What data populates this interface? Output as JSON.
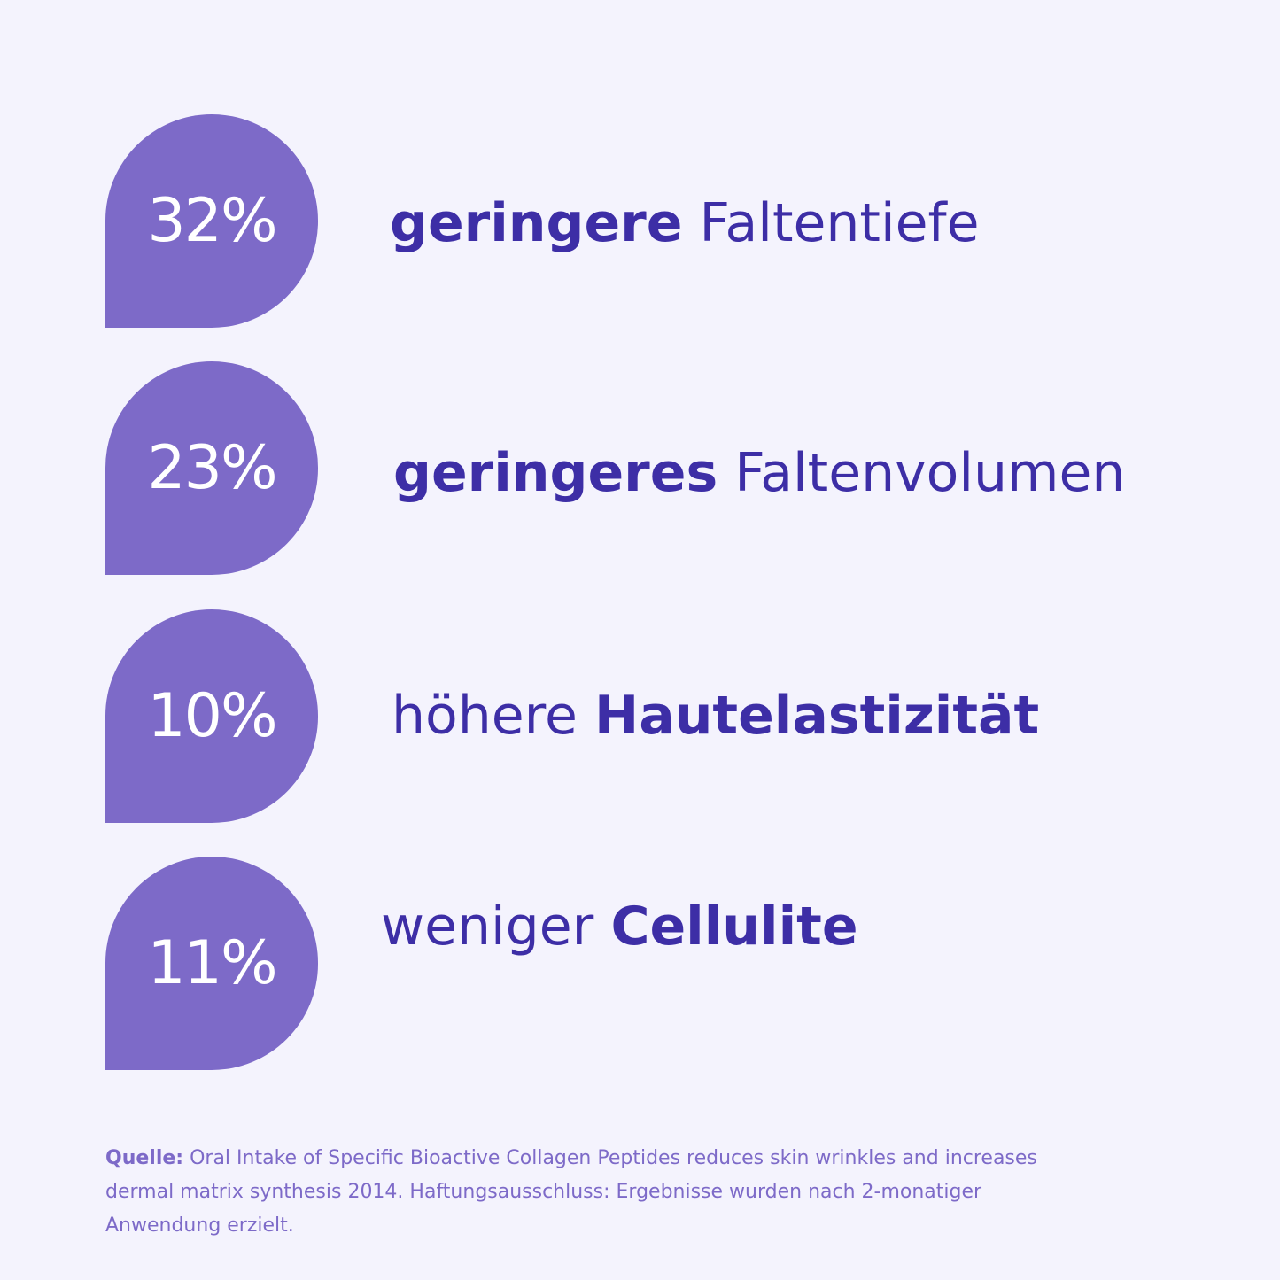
{
  "colors": {
    "background": "#f4f3fd",
    "badge": "#7d6ac8",
    "text_primary": "#3d2ea6",
    "text_source": "#7d6ac8"
  },
  "stats": [
    {
      "value": "32%",
      "part1": "geringere",
      "part2": " Faltentiefe"
    },
    {
      "value": "23%",
      "part1": "geringeres",
      "part2": " Faltenvolumen"
    },
    {
      "value": "10%",
      "part1": "höhere ",
      "part2": "Hautelastizität"
    },
    {
      "value": "11%",
      "part1": "weniger ",
      "part2": "Cellulite"
    }
  ],
  "source": {
    "label": "Quelle:",
    "text": " Oral Intake of Specific Bioactive Collagen Peptides reduces skin wrinkles and increases dermal matrix synthesis 2014. Haftungsausschluss: Ergebnisse wurden nach 2-monatiger Anwendung erzielt."
  }
}
